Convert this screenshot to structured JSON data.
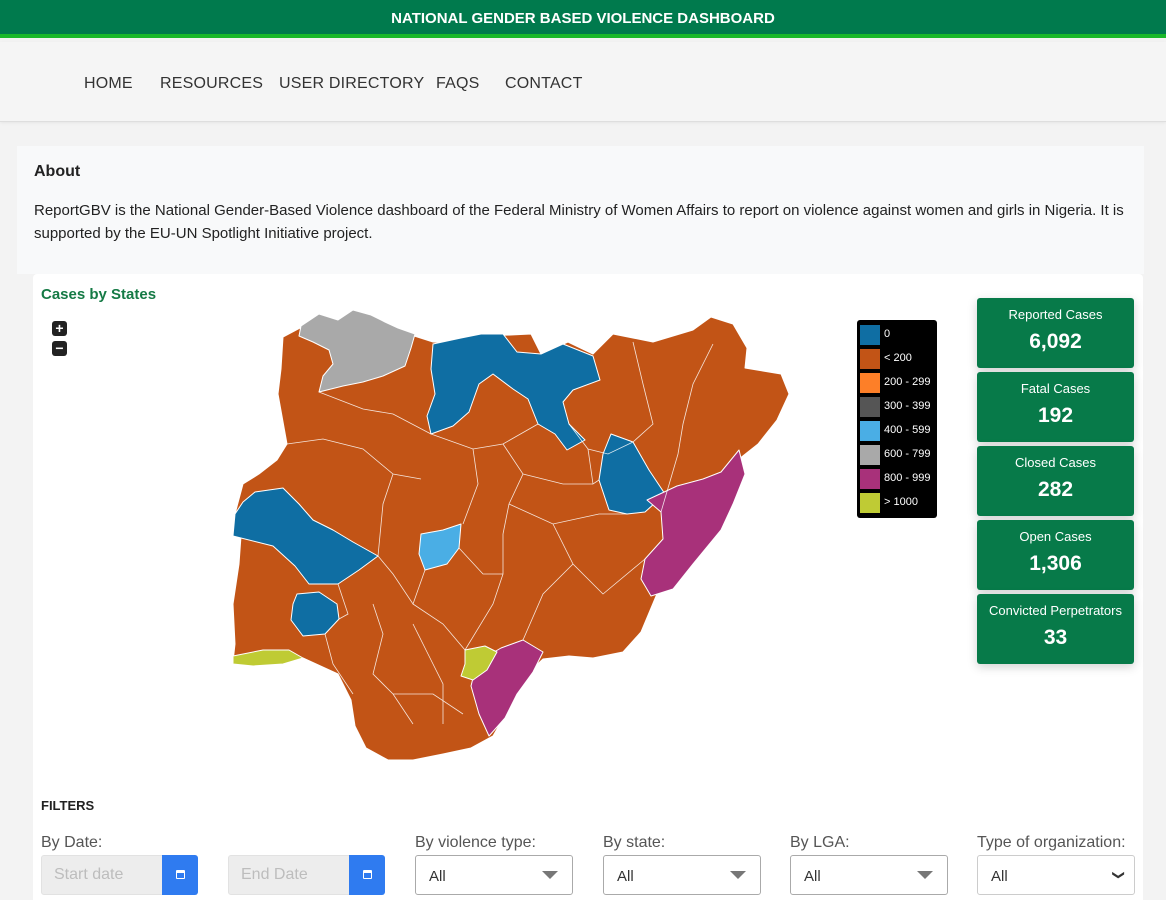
{
  "header": {
    "title": "NATIONAL GENDER BASED VIOLENCE DASHBOARD"
  },
  "nav": [
    {
      "label": "HOME"
    },
    {
      "label": "RESOURCES"
    },
    {
      "label": "USER DIRECTORY"
    },
    {
      "label": "FAQS"
    },
    {
      "label": "CONTACT"
    }
  ],
  "about": {
    "title": "About",
    "text": "ReportGBV is the National Gender-Based Violence dashboard of the Federal Ministry of Women Affairs to report on violence against women and girls in Nigeria. It is supported by the EU-UN Spotlight Initiative project."
  },
  "map": {
    "title": "Cases by States",
    "zoom_in": "+",
    "zoom_out": "−",
    "legend": [
      {
        "label": "0",
        "color": "#0f6ea3"
      },
      {
        "label": "< 200",
        "color": "#c25416"
      },
      {
        "label": "200 - 299",
        "color": "#fd7f28"
      },
      {
        "label": "300 - 399",
        "color": "#555555"
      },
      {
        "label": "400 - 599",
        "color": "#4aaee5"
      },
      {
        "label": "600 - 799",
        "color": "#a9a9a9"
      },
      {
        "label": "800 - 999",
        "color": "#a8317a"
      },
      {
        "label": "> 1000",
        "color": "#bfcb34"
      }
    ]
  },
  "stats": [
    {
      "label": "Reported Cases",
      "value": "6,092"
    },
    {
      "label": "Fatal Cases",
      "value": "192"
    },
    {
      "label": "Closed Cases",
      "value": "282"
    },
    {
      "label": "Open Cases",
      "value": "1,306"
    },
    {
      "label": "Convicted Perpetrators",
      "value": "33"
    }
  ],
  "filters": {
    "title": "FILTERS",
    "date_label": "By Date:",
    "start_placeholder": "Start date",
    "end_placeholder": "End Date",
    "violence_label": "By violence type:",
    "violence_value": "All",
    "state_label": "By state:",
    "state_value": "All",
    "lga_label": "By LGA:",
    "lga_value": "All",
    "org_label": "Type of organization:",
    "org_value": "All"
  }
}
